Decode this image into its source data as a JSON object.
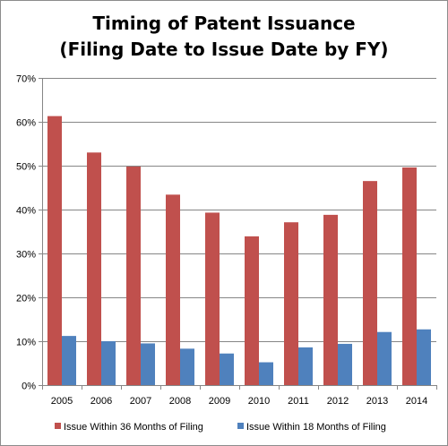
{
  "chart_data": {
    "type": "bar",
    "title": "Timing of Patent Issuance",
    "subtitle": "(Filing Date to Issue Date by FY)",
    "categories": [
      "2005",
      "2006",
      "2007",
      "2008",
      "2009",
      "2010",
      "2011",
      "2012",
      "2013",
      "2014"
    ],
    "series": [
      {
        "name": "Issue Within 36 Months  of Filing",
        "color": "#c0504d",
        "values": [
          61.3,
          53.0,
          49.8,
          43.4,
          39.3,
          33.9,
          37.1,
          38.8,
          46.5,
          49.6
        ]
      },
      {
        "name": "Issue Within 18 Months  of Filing",
        "color": "#4f81bd",
        "values": [
          11.2,
          10.0,
          9.5,
          8.3,
          7.2,
          5.2,
          8.6,
          9.4,
          12.1,
          12.7
        ]
      }
    ],
    "ylim": [
      0,
      70
    ],
    "yticks": [
      "0%",
      "10%",
      "20%",
      "30%",
      "40%",
      "50%",
      "60%",
      "70%"
    ],
    "xlabel": "",
    "ylabel": "",
    "grid": "horizontal",
    "legend_position": "bottom"
  }
}
